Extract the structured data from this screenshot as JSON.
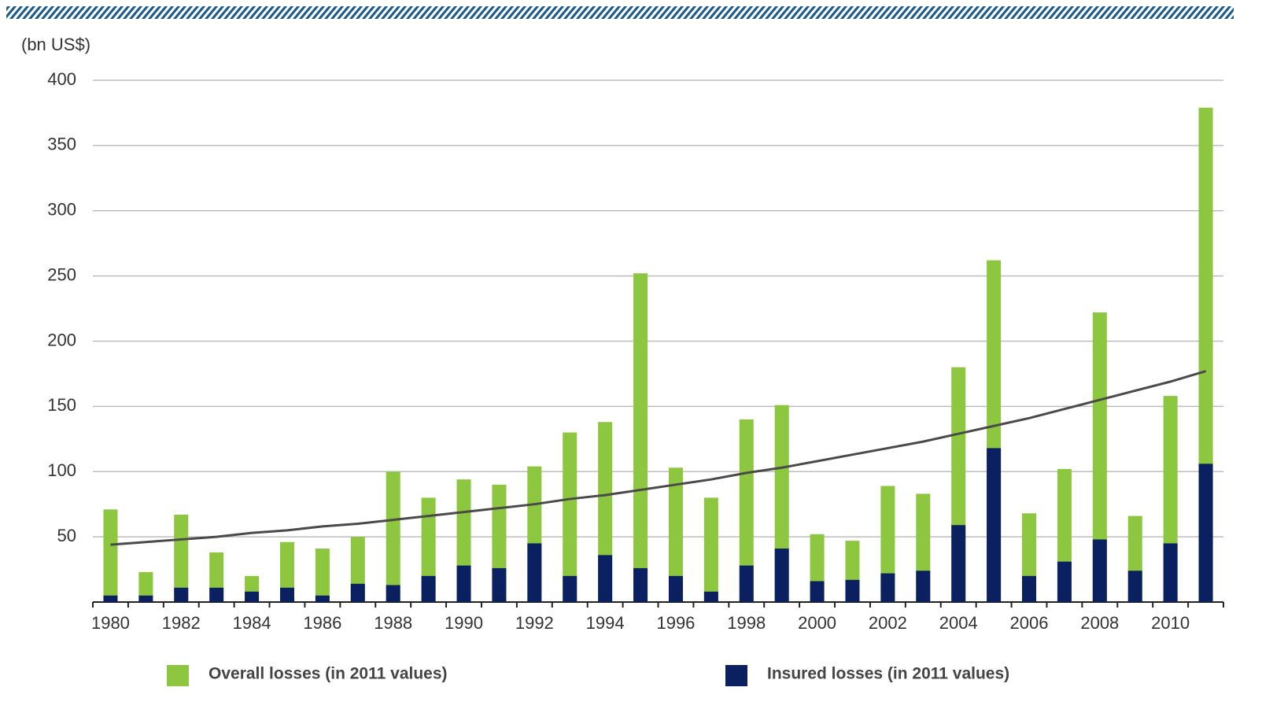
{
  "chart_data": {
    "type": "bar",
    "y_axis_label": "(bn US$)",
    "categories": [
      "1980",
      null,
      "1982",
      null,
      "1984",
      null,
      "1986",
      null,
      "1988",
      null,
      "1990",
      null,
      "1992",
      null,
      "1994",
      null,
      "1996",
      null,
      "1998",
      null,
      "2000",
      null,
      "2002",
      null,
      "2004",
      null,
      "2006",
      null,
      "2008",
      null,
      "2010",
      null
    ],
    "series": [
      {
        "name": "Overall losses (in 2011 values)",
        "color": "#8dc63f",
        "values": [
          71,
          23,
          67,
          38,
          20,
          46,
          41,
          50,
          100,
          80,
          94,
          90,
          104,
          130,
          138,
          252,
          103,
          80,
          140,
          151,
          52,
          47,
          89,
          83,
          180,
          262,
          68,
          102,
          222,
          66,
          158,
          379
        ]
      },
      {
        "name": "Insured losses (in 2011 values)",
        "color": "#0b2060",
        "values": [
          5,
          5,
          11,
          11,
          8,
          11,
          5,
          14,
          13,
          20,
          28,
          26,
          45,
          20,
          36,
          26,
          20,
          8,
          28,
          41,
          16,
          17,
          22,
          24,
          59,
          118,
          20,
          31,
          48,
          24,
          45,
          106
        ]
      }
    ],
    "trend": {
      "color": "#4a4a4a",
      "values": [
        44,
        46,
        48,
        50,
        53,
        55,
        58,
        60,
        63,
        66,
        69,
        72,
        75,
        79,
        82,
        86,
        90,
        94,
        99,
        103,
        108,
        113,
        118,
        123,
        129,
        135,
        141,
        148,
        155,
        162,
        169,
        177
      ]
    },
    "ylim": [
      0,
      400
    ],
    "yticks": [
      50,
      100,
      150,
      200,
      250,
      300,
      350,
      400
    ],
    "grid": true,
    "legend": "bottom"
  }
}
